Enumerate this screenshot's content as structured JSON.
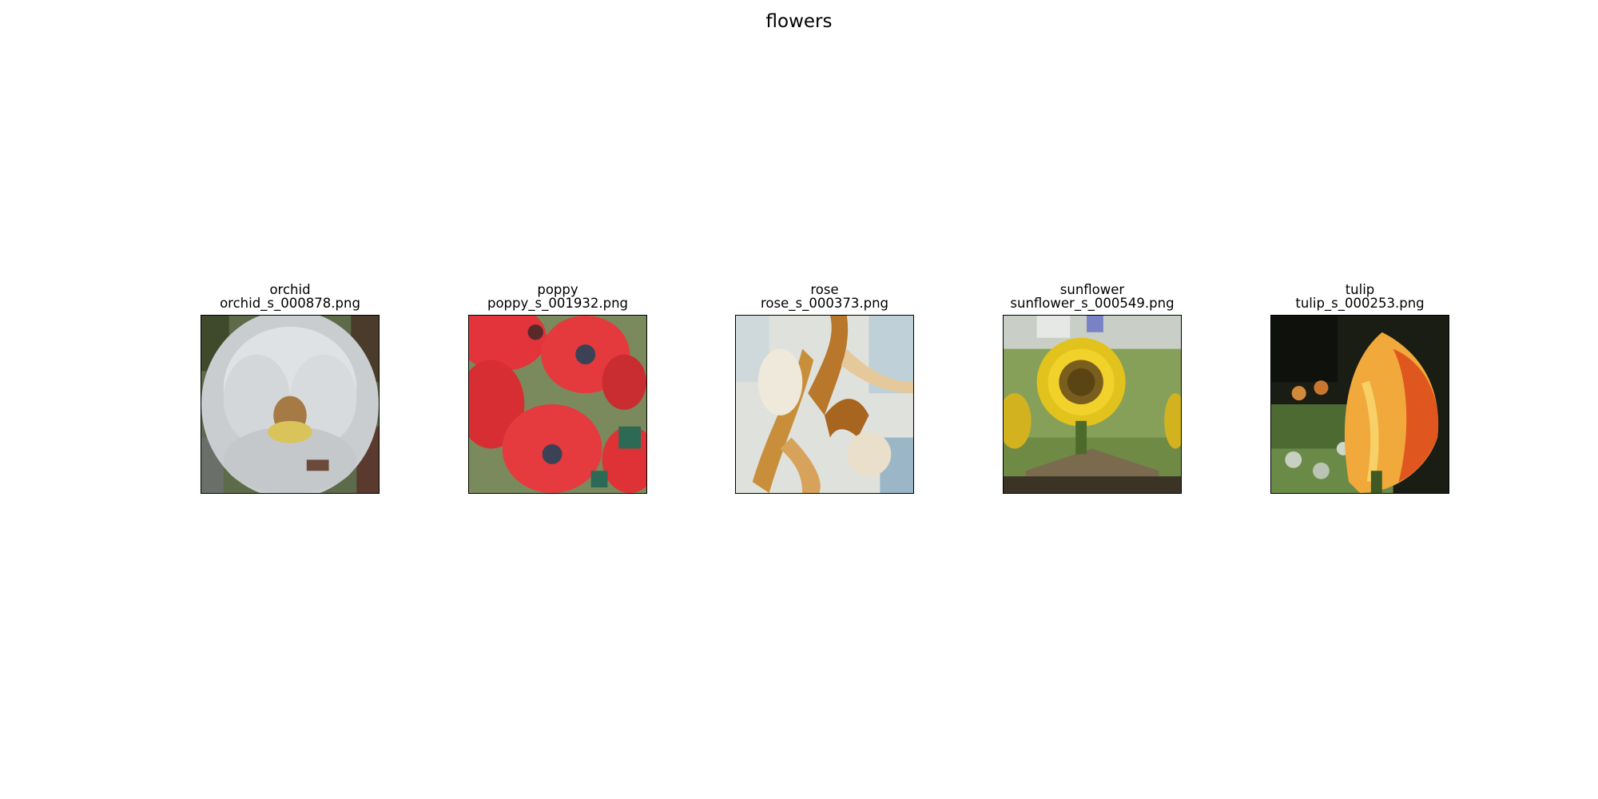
{
  "figure": {
    "title": "flowers"
  },
  "images": [
    {
      "class": "orchid",
      "filename": "orchid_s_000878.png",
      "subject": "white orchid bloom"
    },
    {
      "class": "poppy",
      "filename": "poppy_s_001932.png",
      "subject": "red poppy flowers"
    },
    {
      "class": "rose",
      "filename": "rose_s_000373.png",
      "subject": "cream rose petals"
    },
    {
      "class": "sunflower",
      "filename": "sunflower_s_000549.png",
      "subject": "yellow sunflower"
    },
    {
      "class": "tulip",
      "filename": "tulip_s_000253.png",
      "subject": "orange tulip"
    }
  ]
}
